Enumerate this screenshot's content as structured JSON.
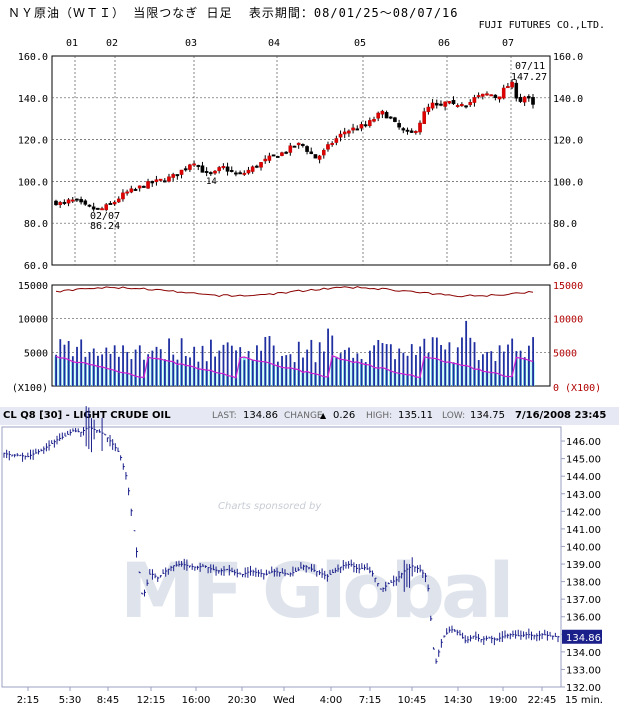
{
  "header": {
    "title": "ＮＹ原油（ＷＴＩ） 当限つなぎ 日足  表示期間：08/01/25～08/07/16",
    "brand": "FUJI FUTURES CO.,LTD."
  },
  "chart_data": [
    {
      "type": "candlestick",
      "title": "ＮＹ原油（ＷＴＩ） 当限つなぎ 日足",
      "period": "08/01/25～08/07/16",
      "month_labels": [
        "01",
        "02",
        "03",
        "04",
        "05",
        "06",
        "07"
      ],
      "y_ticks": [
        "160.0",
        "140.0",
        "120.0",
        "100.0",
        "80.0",
        "60.0"
      ],
      "ylim": [
        60,
        160
      ],
      "grid": true,
      "annotations": [
        {
          "label_date": "07/11",
          "label_value": "147.27",
          "kind": "high"
        },
        {
          "label_date": "02/07",
          "label_value": "86.24",
          "kind": "low"
        },
        {
          "label_value": "14",
          "kind": "note"
        }
      ],
      "close_path": [
        90,
        89,
        91,
        90,
        88,
        87,
        86.24,
        88,
        90,
        93,
        95,
        96,
        98,
        99,
        100,
        101,
        102,
        104,
        107,
        110,
        106,
        103,
        104,
        107,
        105,
        103,
        104,
        106,
        108,
        110,
        112,
        113,
        115,
        117,
        118,
        114,
        111,
        114,
        118,
        121,
        124,
        125,
        126,
        127,
        130,
        133,
        131,
        127,
        124,
        122,
        126,
        133,
        137,
        135,
        138,
        136,
        138,
        137,
        140,
        141,
        142,
        140,
        144,
        147.27,
        138,
        141,
        136
      ]
    },
    {
      "type": "bar+line",
      "title": "volume / open interest",
      "y_ticks_left": [
        "15000",
        "10000",
        "5000",
        "(X100)"
      ],
      "y_ticks_right": [
        "15000",
        "10000",
        "5000",
        "0 (X100)"
      ],
      "ylim": [
        0,
        15000
      ],
      "open_interest_approx": 14000,
      "volume_typical_range": [
        3500,
        7500
      ],
      "volume_peak": 11000
    },
    {
      "type": "line",
      "header": {
        "symbol": "CL Q8 [30] - LIGHT CRUDE OIL",
        "last_label": "LAST:",
        "last": "134.86",
        "change_label": "CHANGE",
        "change_arrow": "▲",
        "change": "0.26",
        "high_label": "HIGH:",
        "high": "135.11",
        "low_label": "LOW:",
        "low": "134.75",
        "datetime": "7/16/2008 23:45"
      },
      "y_ticks": [
        "146.00",
        "145.00",
        "144.00",
        "143.00",
        "142.00",
        "141.00",
        "140.00",
        "139.00",
        "138.00",
        "137.00",
        "136.00",
        "135.00",
        "134.00",
        "133.00",
        "132.00"
      ],
      "ylim": [
        132,
        146.8
      ],
      "x_ticks": [
        "2:15",
        "5:30",
        "8:45",
        "12:15",
        "16:00",
        "20:30",
        "Wed",
        "4:00",
        "7:15",
        "10:45",
        "14:30",
        "19:00",
        "22:45",
        "15 min."
      ],
      "last_value_badge": "134.86",
      "watermark": {
        "sponsor_text": "Charts sponsored by",
        "brand": "MF Global"
      },
      "series_path": [
        145.3,
        145.2,
        145.2,
        145.1,
        145.3,
        145.5,
        145.8,
        146.1,
        146.3,
        146.6,
        146.5,
        146.8,
        146.6,
        146.4,
        145.9,
        145.3,
        143.8,
        140.5,
        137.0,
        138.5,
        138.2,
        138.6,
        138.9,
        139.0,
        138.9,
        138.8,
        138.9,
        138.7,
        138.6,
        138.7,
        138.5,
        138.4,
        138.6,
        138.5,
        138.4,
        138.6,
        138.5,
        138.4,
        138.6,
        138.9,
        138.7,
        138.5,
        138.3,
        138.6,
        138.9,
        139.0,
        138.7,
        138.8,
        138.4,
        137.5,
        137.9,
        138.1,
        138.6,
        138.9,
        138.7,
        138.2,
        133.2,
        134.8,
        135.3,
        135.1,
        134.6,
        134.9,
        134.7,
        134.8,
        134.7,
        134.9,
        135.0,
        134.9,
        135.0,
        134.9,
        135.0,
        134.9,
        134.86
      ]
    }
  ]
}
